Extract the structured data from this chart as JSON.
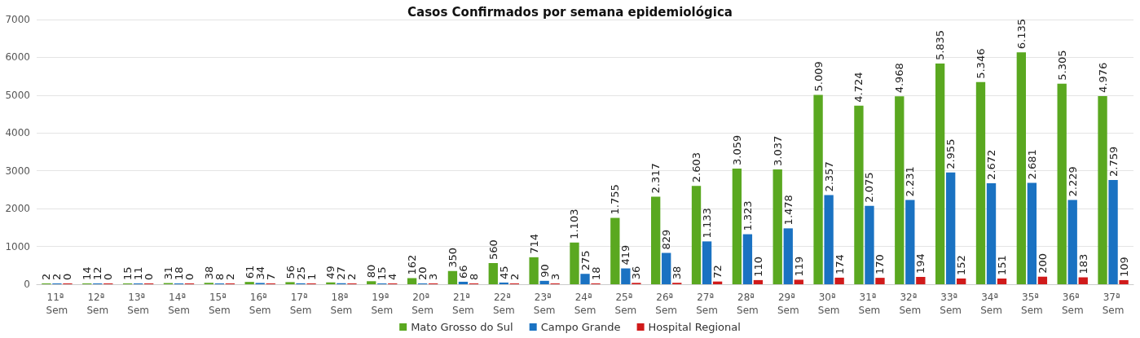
{
  "chart_data": {
    "type": "bar",
    "title": "Casos Confirmados por semana epidemiológica",
    "categories": [
      "11ª Sem",
      "12ª Sem",
      "13ª Sem",
      "14ª Sem",
      "15ª Sem",
      "16ª Sem",
      "17ª Sem",
      "18ª Sem",
      "19ª Sem",
      "20ª Sem",
      "21ª Sem",
      "22ª Sem",
      "23ª Sem",
      "24ª Sem",
      "25ª Sem",
      "26ª Sem",
      "27ª Sem",
      "28ª Sem",
      "29ª Sem",
      "30ª Sem",
      "31ª Sem",
      "32ª Sem",
      "33ª Sem",
      "34ª Sem",
      "35ª Sem",
      "36ª Sem",
      "37ª Sem"
    ],
    "series": [
      {
        "name": "Mato Grosso do Sul",
        "color": "#5aa820",
        "values": [
          2,
          14,
          15,
          31,
          38,
          61,
          56,
          49,
          80,
          162,
          350,
          560,
          714,
          1103,
          1755,
          2317,
          2603,
          3059,
          3037,
          5009,
          4724,
          4968,
          5835,
          5346,
          6135,
          5305,
          4976
        ],
        "value_labels": [
          "2",
          "14",
          "15",
          "31",
          "38",
          "61",
          "56",
          "49",
          "80",
          "162",
          "350",
          "560",
          "714",
          "1.103",
          "1.755",
          "2.317",
          "2.603",
          "3.059",
          "3.037",
          "5.009",
          "4.724",
          "4.968",
          "5.835",
          "5.346",
          "6.135",
          "5.305",
          "4.976"
        ]
      },
      {
        "name": "Campo Grande",
        "color": "#1a72c2",
        "values": [
          2,
          12,
          11,
          18,
          8,
          34,
          25,
          27,
          15,
          20,
          66,
          45,
          90,
          275,
          419,
          829,
          1133,
          1323,
          1478,
          2357,
          2075,
          2231,
          2955,
          2672,
          2681,
          2229,
          2759
        ],
        "value_labels": [
          "2",
          "12",
          "11",
          "18",
          "8",
          "34",
          "25",
          "27",
          "15",
          "20",
          "66",
          "45",
          "90",
          "275",
          "419",
          "829",
          "1.133",
          "1.323",
          "1.478",
          "2.357",
          "2.075",
          "2.231",
          "2.955",
          "2.672",
          "2.681",
          "2.229",
          "2.759"
        ]
      },
      {
        "name": "Hospital Regional",
        "color": "#d01a1a",
        "values": [
          0,
          0,
          0,
          0,
          2,
          7,
          1,
          2,
          4,
          3,
          8,
          2,
          3,
          18,
          36,
          38,
          72,
          110,
          119,
          174,
          170,
          194,
          152,
          151,
          200,
          183,
          109
        ],
        "value_labels": [
          "0",
          "0",
          "0",
          "0",
          "2",
          "7",
          "1",
          "2",
          "4",
          "3",
          "8",
          "2",
          "3",
          "18",
          "36",
          "38",
          "72",
          "110",
          "119",
          "174",
          "170",
          "194",
          "152",
          "151",
          "200",
          "183",
          "109"
        ]
      }
    ],
    "ylim": [
      0,
      7000
    ],
    "yticks": [
      0,
      1000,
      2000,
      3000,
      4000,
      5000,
      6000,
      7000
    ],
    "grid": "y",
    "legend": "bottom"
  }
}
